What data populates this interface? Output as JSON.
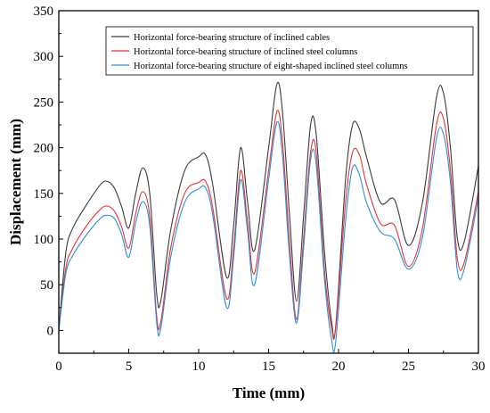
{
  "chart_data": {
    "type": "line",
    "xlabel": "Time (mm)",
    "ylabel": "Displacement (mm)",
    "xlim": [
      0,
      30
    ],
    "ylim": [
      -25,
      350
    ],
    "xticks": [
      0,
      5,
      10,
      15,
      20,
      25,
      30
    ],
    "yticks": [
      0,
      50,
      100,
      150,
      200,
      250,
      300,
      350
    ],
    "grid": false,
    "legend_position": "top-right",
    "series": [
      {
        "name": "Horizontal force-bearing structure of inclined cables",
        "color": "#3a3a3a",
        "x": [
          0,
          0.5,
          1,
          2,
          3,
          3.5,
          4,
          4.5,
          5,
          5.5,
          6,
          6.5,
          7,
          7.3,
          8,
          9,
          10,
          10.5,
          11,
          12,
          12.5,
          13,
          13.5,
          14,
          15,
          15.6,
          16,
          16.5,
          17,
          17.5,
          18,
          18.4,
          19,
          19.5,
          19.8,
          20.5,
          21,
          21.5,
          22,
          23,
          24,
          25,
          26,
          27,
          27.5,
          28,
          28.5,
          29,
          30
        ],
        "y": [
          0,
          85,
          112,
          138,
          160,
          163,
          155,
          135,
          112,
          150,
          178,
          150,
          40,
          33,
          110,
          175,
          190,
          192,
          160,
          58,
          115,
          200,
          140,
          88,
          200,
          270,
          238,
          125,
          32,
          125,
          225,
          215,
          85,
          10,
          5,
          165,
          225,
          220,
          190,
          140,
          143,
          93,
          140,
          255,
          260,
          200,
          100,
          98,
          180
        ]
      },
      {
        "name": "Horizontal force-bearing structure of inclined steel columns",
        "color": "#e8322e",
        "x": [
          0,
          0.5,
          1,
          2,
          3,
          3.5,
          4,
          4.5,
          5,
          5.5,
          6,
          6.5,
          7,
          7.3,
          8,
          9,
          10,
          10.5,
          11,
          12,
          12.5,
          13,
          13.5,
          14,
          15,
          15.6,
          16,
          16.5,
          17,
          17.5,
          18,
          18.4,
          19,
          19.5,
          19.8,
          20.5,
          21,
          21.5,
          22,
          23,
          24,
          25,
          26,
          27,
          27.5,
          28,
          28.5,
          29,
          30
        ],
        "y": [
          0,
          68,
          90,
          115,
          133,
          136,
          130,
          113,
          90,
          128,
          152,
          125,
          15,
          10,
          90,
          150,
          162,
          163,
          135,
          35,
          90,
          175,
          118,
          63,
          175,
          240,
          205,
          95,
          12,
          100,
          195,
          195,
          65,
          3,
          3,
          140,
          195,
          192,
          160,
          117,
          115,
          70,
          112,
          225,
          232,
          175,
          78,
          75,
          152
        ]
      },
      {
        "name": "Horizontal force-bearing structure of eight-shaped inclined steel columns",
        "color": "#2b8fe0",
        "x": [
          0,
          0.5,
          1,
          2,
          3,
          3.5,
          4,
          4.5,
          5,
          5.5,
          6,
          6.5,
          7,
          7.3,
          8,
          9,
          10,
          10.5,
          11,
          12,
          12.5,
          13,
          13.5,
          14,
          15,
          15.6,
          16,
          16.5,
          17,
          17.5,
          18,
          18.4,
          19,
          19.5,
          19.8,
          20.5,
          21,
          21.5,
          22,
          23,
          24,
          25,
          26,
          27,
          27.5,
          28,
          28.5,
          29,
          30
        ],
        "y": [
          0,
          62,
          82,
          105,
          123,
          126,
          122,
          105,
          80,
          118,
          141,
          115,
          8,
          3,
          80,
          140,
          155,
          156,
          127,
          25,
          80,
          165,
          108,
          50,
          165,
          228,
          190,
          80,
          8,
          90,
          187,
          182,
          55,
          -10,
          -12,
          120,
          178,
          170,
          140,
          108,
          100,
          67,
          102,
          210,
          215,
          162,
          65,
          68,
          145
        ]
      }
    ]
  }
}
